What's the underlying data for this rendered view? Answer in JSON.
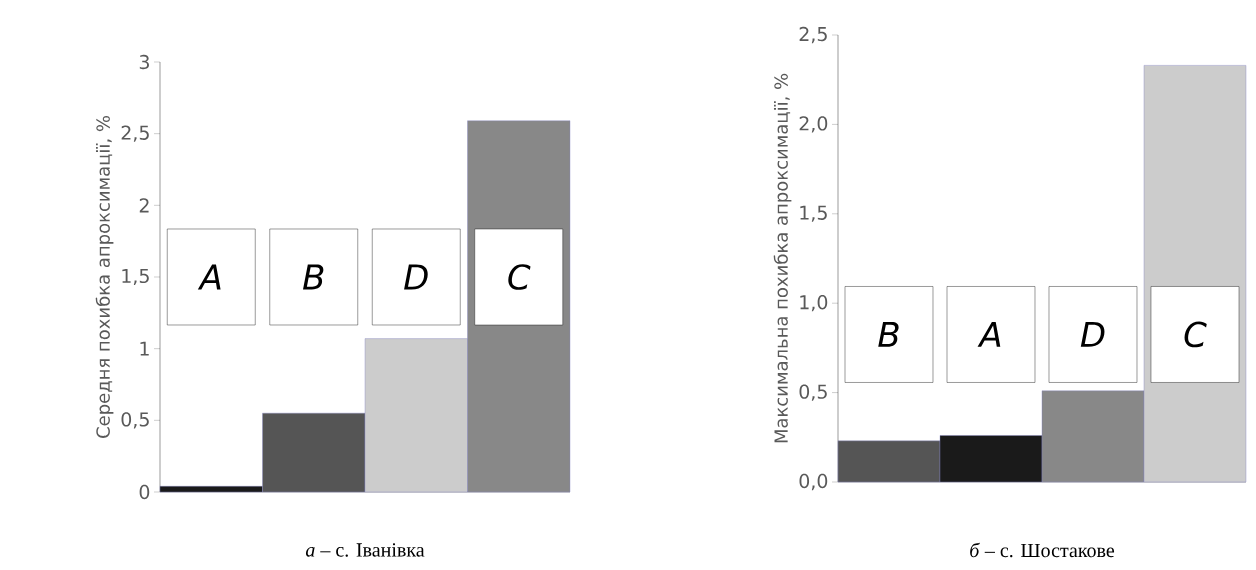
{
  "chart_data": [
    {
      "type": "bar",
      "title": "*а* – с. Іванівка",
      "ylabel": "Середня похибка апроксимації, %",
      "categories": [
        "A",
        "B",
        "D",
        "C"
      ],
      "values": [
        0.04,
        0.55,
        1.07,
        2.59
      ],
      "colors": [
        "#1a1a1a",
        "#555555",
        "#cccccc",
        "#888888"
      ],
      "ylim": [
        0,
        3
      ],
      "yticks": [
        0,
        {
          "value": 0.5,
          "label": "0,5"
        },
        1,
        {
          "value": 1.5,
          "label": "1,5"
        },
        2,
        {
          "value": 2.5,
          "label": "2,5"
        },
        3
      ]
    },
    {
      "type": "bar",
      "title": "*б* – с. Шостакове",
      "ylabel": "Максимальна похибка апроксимації, %",
      "categories": [
        "B",
        "A",
        "D",
        "C"
      ],
      "values": [
        0.23,
        0.26,
        0.51,
        2.33
      ],
      "colors": [
        "#555555",
        "#1a1a1a",
        "#888888",
        "#cccccc"
      ],
      "ylim": [
        0,
        2.5
      ],
      "yticks": [
        {
          "value": 0,
          "label": "0,0"
        },
        {
          "value": 0.5,
          "label": "0,5"
        },
        {
          "value": 1,
          "label": "1,0"
        },
        {
          "value": 1.5,
          "label": "1,5"
        },
        {
          "value": 2,
          "label": "2,0"
        },
        {
          "value": 2.5,
          "label": "2,5"
        }
      ]
    }
  ]
}
